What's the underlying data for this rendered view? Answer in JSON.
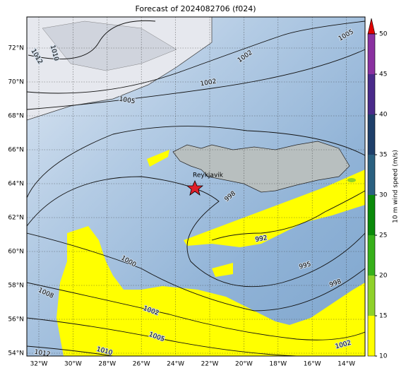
{
  "title": "Forecast of 2024082706 (f024)",
  "lat_labels": [
    "54°N",
    "56°N",
    "58°N",
    "60°N",
    "62°N",
    "64°N",
    "66°N",
    "68°N",
    "70°N",
    "72°N"
  ],
  "lon_labels": [
    "32°W",
    "30°W",
    "28°W",
    "26°W",
    "24°W",
    "22°W",
    "20°W",
    "18°W",
    "16°W",
    "14°W"
  ],
  "place": "Reykjavik",
  "contour_labels": [
    "1012",
    "1010",
    "1005",
    "1002",
    "1002",
    "1005",
    "998",
    "992",
    "995",
    "998",
    "1000",
    "1008",
    "1002",
    "1005",
    "1010",
    "1012",
    "1002"
  ],
  "colorbar": {
    "label": "10 m wind speed (m/s)",
    "ticks": [
      10,
      15,
      20,
      25,
      30,
      35,
      40,
      45,
      50
    ]
  }
}
